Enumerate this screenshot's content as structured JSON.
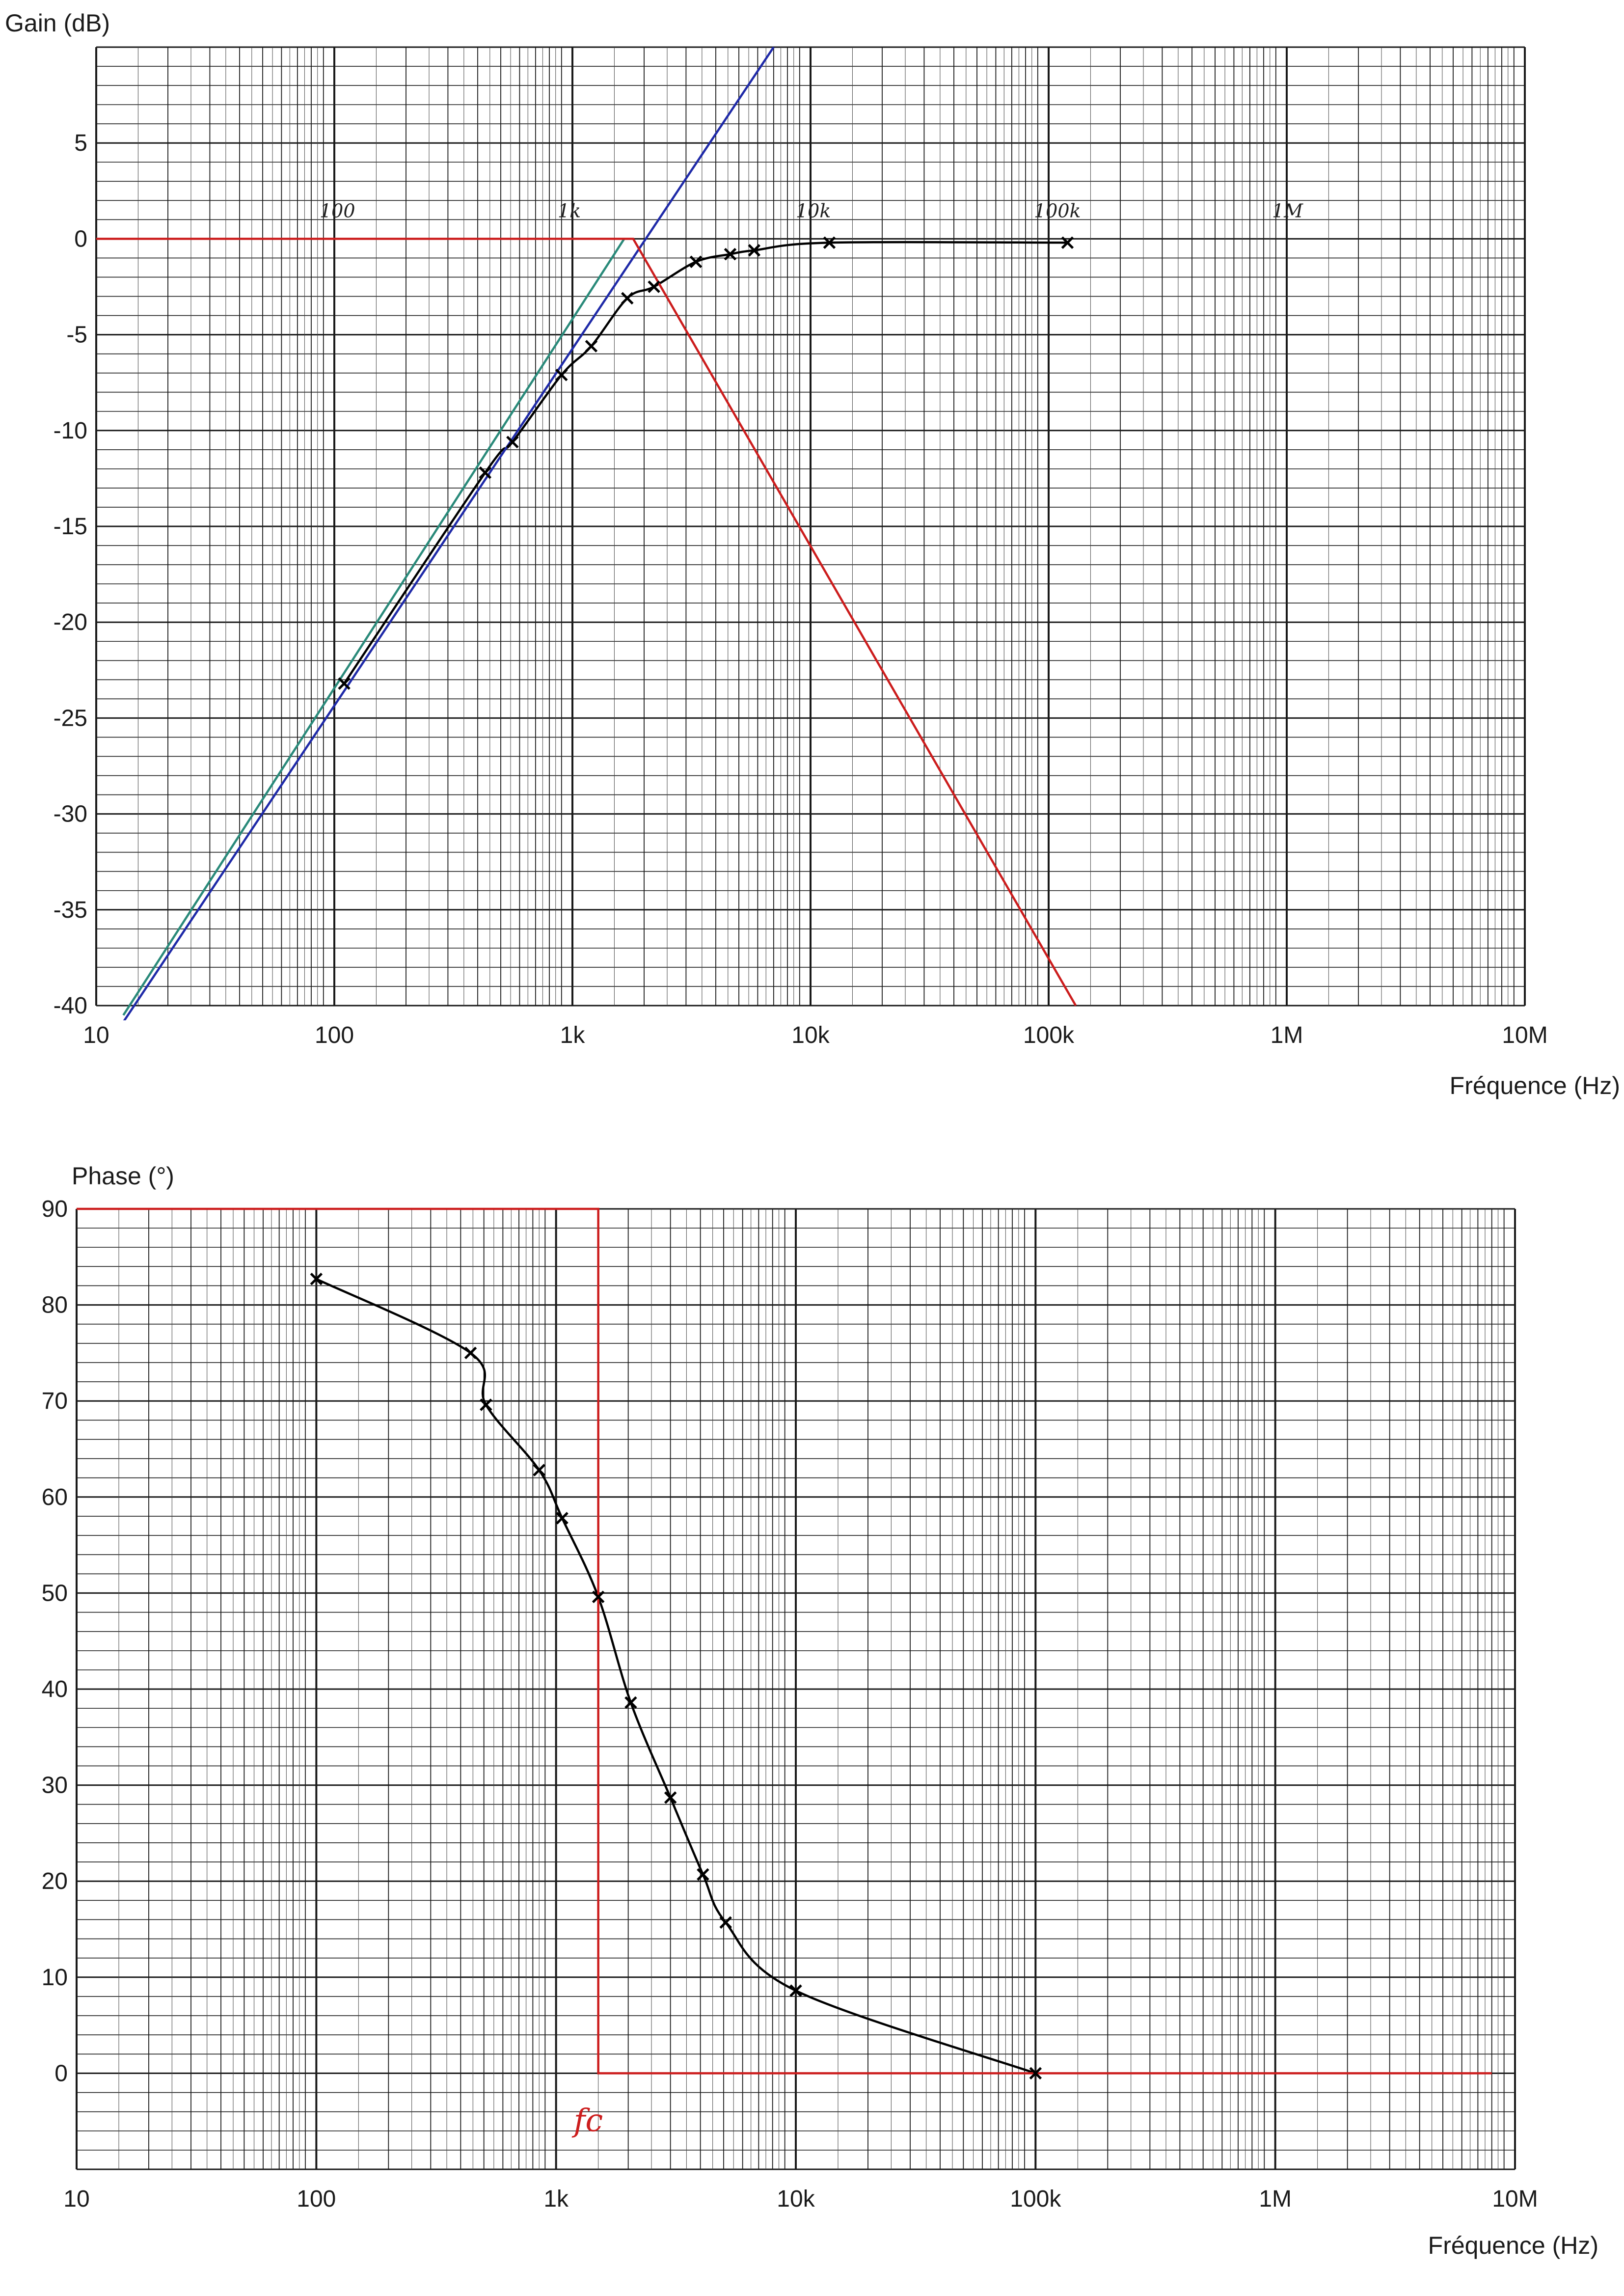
{
  "chart_data": [
    {
      "type": "line",
      "ylabel": "Gain (dB)",
      "xlabel": "Fréquence (Hz)",
      "xscale": "log",
      "xlim": [
        10,
        10000000
      ],
      "ylim": [
        -40,
        10
      ],
      "grid": true,
      "x_tick_labels": [
        "10",
        "100",
        "1k",
        "10k",
        "100k",
        "1M",
        "10M"
      ],
      "y_tick_labels": [
        "5",
        "0",
        "-5",
        "-10",
        "-15",
        "-20",
        "-25",
        "-30",
        "-35",
        "-40"
      ],
      "handwritten_labels": [
        "100",
        "1k",
        "10k",
        "100k",
        "1M"
      ],
      "series": [
        {
          "color": "#000000",
          "style": "measured",
          "x": [
            110,
            430,
            560,
            900,
            1200,
            1700,
            2200,
            3300,
            4600,
            5800,
            12000,
            120000
          ],
          "y": [
            -23.2,
            -12.2,
            -10.6,
            -7.1,
            -5.6,
            -3.1,
            -2.5,
            -1.2,
            -0.8,
            -0.6,
            -0.2,
            -0.2
          ]
        },
        {
          "color": "#1f2aa8",
          "style": "asymptote",
          "x": [
            12,
            7000
          ],
          "y": [
            -41.5,
            10
          ]
        },
        {
          "color": "#2a8a7a",
          "style": "asymptote",
          "x": [
            13,
            1650
          ],
          "y": [
            -40.5,
            0
          ]
        },
        {
          "color": "#cc1d1d",
          "style": "asymptote",
          "x": [
            10,
            1800,
            130000
          ],
          "y": [
            0,
            0,
            -40
          ]
        }
      ]
    },
    {
      "type": "line",
      "ylabel": "Phase (°)",
      "xlabel": "Fréquence (Hz)",
      "xscale": "log",
      "xlim": [
        10,
        10000000
      ],
      "ylim": [
        -10,
        90
      ],
      "grid": true,
      "x_tick_labels": [
        "10",
        "100",
        "1k",
        "10k",
        "100k",
        "1M",
        "10M"
      ],
      "y_tick_labels": [
        "90",
        "80",
        "70",
        "60",
        "50",
        "40",
        "30",
        "20",
        "10",
        "0"
      ],
      "handwritten_labels": [
        "fc"
      ],
      "series": [
        {
          "color": "#000000",
          "style": "measured",
          "x": [
            100,
            440,
            510,
            850,
            1060,
            1500,
            2050,
            3000,
            4100,
            5100,
            10000,
            100000
          ],
          "y": [
            82.7,
            75,
            69.6,
            62.8,
            57.8,
            49.6,
            38.6,
            28.7,
            20.7,
            15.7,
            8.6,
            0
          ]
        },
        {
          "color": "#cc1d1d",
          "style": "asymptote",
          "x": [
            10,
            1500,
            1500,
            8000000
          ],
          "y": [
            90,
            90,
            0,
            0
          ]
        }
      ]
    }
  ]
}
